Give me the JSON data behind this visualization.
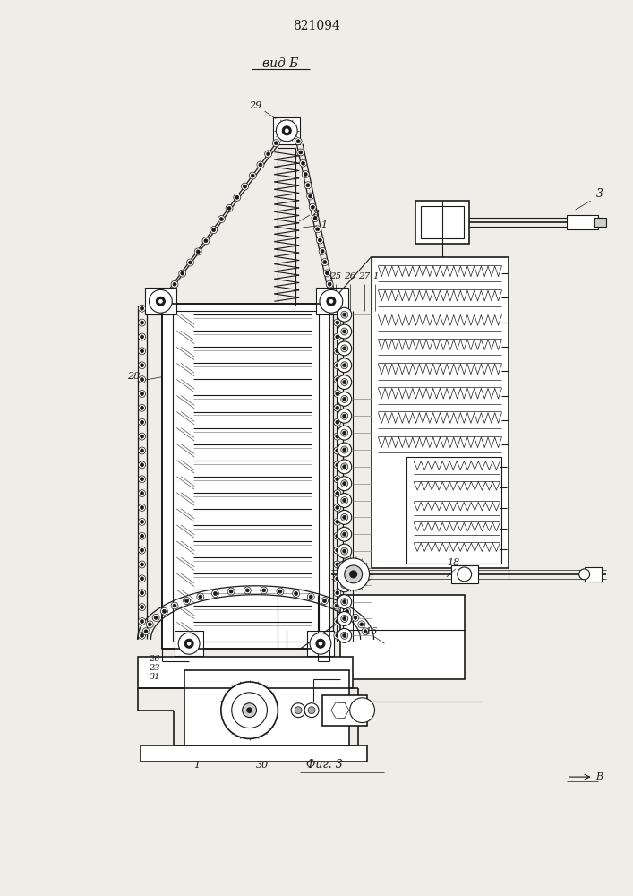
{
  "title": "821094",
  "subtitle": "вид Б",
  "bg_color": "#f0ede8",
  "line_color": "#1a1a1a",
  "fig_width": 7.07,
  "fig_height": 10.0,
  "dpi": 100
}
